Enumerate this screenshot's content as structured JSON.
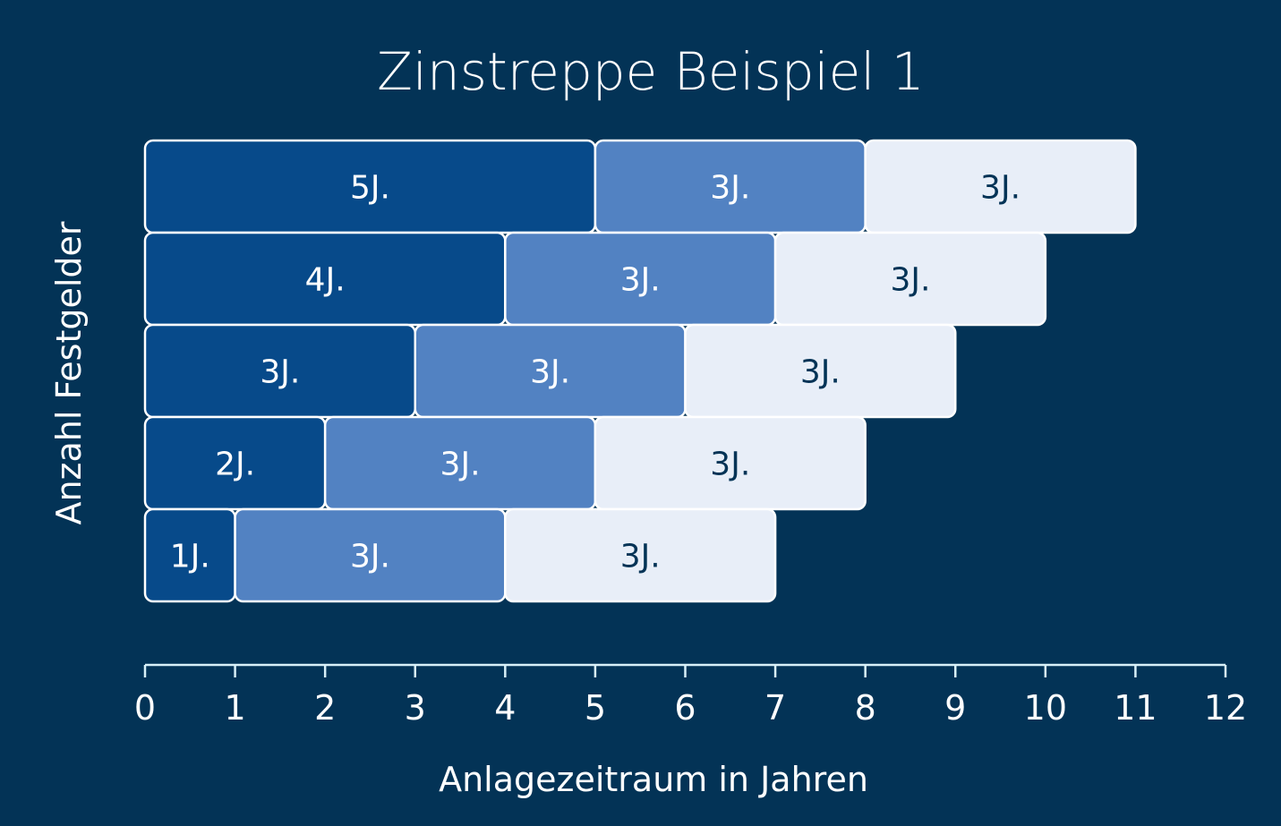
{
  "chart_data": {
    "type": "bar",
    "orientation": "horizontal-stacked",
    "title": "Zinstreppe Beispiel 1",
    "xlabel": "Anlagezeitraum in Jahren",
    "ylabel": "Anzahl Festgelder",
    "xlim": [
      0,
      12
    ],
    "xticks": [
      0,
      1,
      2,
      3,
      4,
      5,
      6,
      7,
      8,
      9,
      10,
      11,
      12
    ],
    "grid": false,
    "colors": {
      "background": "#033356",
      "first": "#074a8a",
      "second": "#5282c2",
      "third": "#e8eef8",
      "text_dark": "#033356",
      "text_light": "#ffffff",
      "border": "#ffffff"
    },
    "rows": [
      {
        "segments": [
          {
            "start": 0,
            "length": 5,
            "label": "5J."
          },
          {
            "start": 5,
            "length": 3,
            "label": "3J."
          },
          {
            "start": 8,
            "length": 3,
            "label": "3J."
          }
        ]
      },
      {
        "segments": [
          {
            "start": 0,
            "length": 4,
            "label": "4J."
          },
          {
            "start": 4,
            "length": 3,
            "label": "3J."
          },
          {
            "start": 7,
            "length": 3,
            "label": "3J."
          }
        ]
      },
      {
        "segments": [
          {
            "start": 0,
            "length": 3,
            "label": "3J."
          },
          {
            "start": 3,
            "length": 3,
            "label": "3J."
          },
          {
            "start": 6,
            "length": 3,
            "label": "3J."
          }
        ]
      },
      {
        "segments": [
          {
            "start": 0,
            "length": 2,
            "label": "2J."
          },
          {
            "start": 2,
            "length": 3,
            "label": "3J."
          },
          {
            "start": 5,
            "length": 3,
            "label": "3J."
          }
        ]
      },
      {
        "segments": [
          {
            "start": 0,
            "length": 1,
            "label": "1J."
          },
          {
            "start": 1,
            "length": 3,
            "label": "3J."
          },
          {
            "start": 4,
            "length": 3,
            "label": "3J."
          }
        ]
      }
    ]
  }
}
